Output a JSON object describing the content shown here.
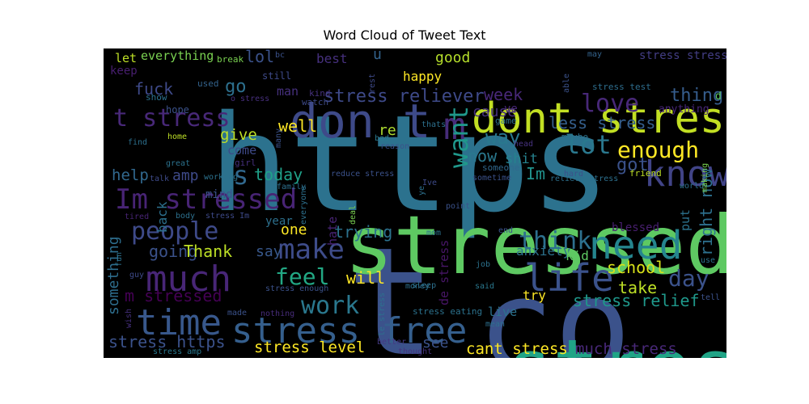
{
  "title": "Word Cloud of Tweet Text",
  "palette": "viridis",
  "words": [
    {
      "text": "https",
      "weight": 1.0,
      "color": "#2c728e"
    },
    {
      "text": "t",
      "weight": 0.98,
      "color": "#3b528b"
    },
    {
      "text": "co",
      "weight": 0.95,
      "color": "#3b528b"
    },
    {
      "text": "stressed",
      "weight": 0.85,
      "color": "#5ec962"
    },
    {
      "text": "stress",
      "weight": 0.78,
      "color": "#20a486"
    },
    {
      "text": "dont stress",
      "weight": 0.45,
      "color": "#c2df23"
    },
    {
      "text": "don t",
      "weight": 0.4,
      "color": "#3e4a89"
    },
    {
      "text": "t stress",
      "weight": 0.27,
      "color": "#482878"
    },
    {
      "text": "m",
      "weight": 0.35,
      "color": "#472c7a"
    },
    {
      "text": "know",
      "weight": 0.33,
      "color": "#414487"
    },
    {
      "text": "stress free",
      "weight": 0.36,
      "color": "#355f8d"
    },
    {
      "text": "time",
      "weight": 0.37,
      "color": "#38588c"
    },
    {
      "text": "need",
      "weight": 0.38,
      "color": "#25858e"
    },
    {
      "text": "life",
      "weight": 0.37,
      "color": "#3b528b"
    },
    {
      "text": "much",
      "weight": 0.36,
      "color": "#482677"
    },
    {
      "text": "Im stressed",
      "weight": 0.3,
      "color": "#482475"
    },
    {
      "text": "people",
      "weight": 0.28,
      "color": "#3e4a89"
    },
    {
      "text": "make",
      "weight": 0.3,
      "color": "#3e4c8a"
    },
    {
      "text": "love",
      "weight": 0.27,
      "color": "#482878"
    },
    {
      "text": "want",
      "weight": 0.27,
      "color": "#1f988b"
    },
    {
      "text": "lot",
      "weight": 0.27,
      "color": "#2a788e"
    },
    {
      "text": "enough",
      "weight": 0.27,
      "color": "#fde725"
    },
    {
      "text": "think",
      "weight": 0.28,
      "color": "#2d708e"
    },
    {
      "text": "work",
      "weight": 0.27,
      "color": "#2a788e"
    },
    {
      "text": "feel",
      "weight": 0.26,
      "color": "#22a884"
    },
    {
      "text": "day",
      "weight": 0.25,
      "color": "#3b528b"
    },
    {
      "text": "stress reliever",
      "weight": 0.2,
      "color": "#3e4a89"
    },
    {
      "text": "week",
      "weight": 0.16,
      "color": "#482878"
    },
    {
      "text": "thing",
      "weight": 0.18,
      "color": "#365d8d"
    },
    {
      "text": "less stress",
      "weight": 0.16,
      "color": "#355f8d"
    },
    {
      "text": "way",
      "weight": 0.2,
      "color": "#2a788e"
    },
    {
      "text": "s",
      "weight": 0.25,
      "color": "#31688e"
    },
    {
      "text": "fuck",
      "weight": 0.18,
      "color": "#3e4a89"
    },
    {
      "text": "go",
      "weight": 0.18,
      "color": "#2d708e"
    },
    {
      "text": "lol",
      "weight": 0.16,
      "color": "#3b528b"
    },
    {
      "text": "good",
      "weight": 0.16,
      "color": "#b5de2b"
    },
    {
      "text": "happy",
      "weight": 0.13,
      "color": "#fde725"
    },
    {
      "text": "best",
      "weight": 0.13,
      "color": "#46307e"
    },
    {
      "text": "u",
      "weight": 0.15,
      "color": "#33638d"
    },
    {
      "text": "everything",
      "weight": 0.13,
      "color": "#7ad151"
    },
    {
      "text": "let",
      "weight": 0.12,
      "color": "#bddf26"
    },
    {
      "text": "keep",
      "weight": 0.11,
      "color": "#481f70"
    },
    {
      "text": "stress stress",
      "weight": 0.12,
      "color": "#433e85"
    },
    {
      "text": "stress test",
      "weight": 0.09,
      "color": "#2e6e8e"
    },
    {
      "text": "anything",
      "weight": 0.1,
      "color": "#482777"
    },
    {
      "text": "well",
      "weight": 0.16,
      "color": "#fde725"
    },
    {
      "text": "give",
      "weight": 0.15,
      "color": "#bddf26"
    },
    {
      "text": "cause",
      "weight": 0.16,
      "color": "#46307e"
    },
    {
      "text": "re",
      "weight": 0.14,
      "color": "#addc30"
    },
    {
      "text": "now",
      "weight": 0.17,
      "color": "#2a788e"
    },
    {
      "text": "shit",
      "weight": 0.14,
      "color": "#26828e"
    },
    {
      "text": "got",
      "weight": 0.18,
      "color": "#3b528b"
    },
    {
      "text": "Im",
      "weight": 0.17,
      "color": "#21918c"
    },
    {
      "text": "help",
      "weight": 0.16,
      "color": "#31688e"
    },
    {
      "text": "amp",
      "weight": 0.16,
      "color": "#3e4a89"
    },
    {
      "text": "today",
      "weight": 0.17,
      "color": "#1fa088"
    },
    {
      "text": "come",
      "weight": 0.11,
      "color": "#3e4a89"
    },
    {
      "text": "right now",
      "weight": 0.18,
      "color": "#2d708e"
    },
    {
      "text": "one",
      "weight": 0.16,
      "color": "#fde725"
    },
    {
      "text": "hate",
      "weight": 0.11,
      "color": "#482475"
    },
    {
      "text": "trying",
      "weight": 0.17,
      "color": "#2c728e"
    },
    {
      "text": "going",
      "weight": 0.17,
      "color": "#3b528b"
    },
    {
      "text": "Thank",
      "weight": 0.17,
      "color": "#bddf26"
    },
    {
      "text": "say",
      "weight": 0.15,
      "color": "#38588c"
    },
    {
      "text": "will",
      "weight": 0.16,
      "color": "#fde725"
    },
    {
      "text": "anxiety",
      "weight": 0.12,
      "color": "#2c728e"
    },
    {
      "text": "kid",
      "weight": 0.12,
      "color": "#5ec962"
    },
    {
      "text": "school",
      "weight": 0.17,
      "color": "#d8e219"
    },
    {
      "text": "take",
      "weight": 0.17,
      "color": "#bddf26"
    },
    {
      "text": "m stressed",
      "weight": 0.17,
      "color": "#440154"
    },
    {
      "text": "something",
      "weight": 0.15,
      "color": "#2e6e8e"
    },
    {
      "text": "stress relief",
      "weight": 0.17,
      "color": "#1f988b"
    },
    {
      "text": "try",
      "weight": 0.12,
      "color": "#fde725"
    },
    {
      "text": "live",
      "weight": 0.12,
      "color": "#2c728e"
    },
    {
      "text": "de stress",
      "weight": 0.13,
      "color": "#481668"
    },
    {
      "text": "stress https",
      "weight": 0.17,
      "color": "#3b528b"
    },
    {
      "text": "stress level",
      "weight": 0.17,
      "color": "#fde725"
    },
    {
      "text": "see",
      "weight": 0.15,
      "color": "#3b528b"
    },
    {
      "text": "cant stress",
      "weight": 0.17,
      "color": "#fde725"
    },
    {
      "text": "much stress",
      "weight": 0.17,
      "color": "#482878"
    },
    {
      "text": "year",
      "weight": 0.11,
      "color": "#2d708e"
    },
    {
      "text": "blessed",
      "weight": 0.11,
      "color": "#481f70"
    },
    {
      "text": "put",
      "weight": 0.12,
      "color": "#2c728e"
    },
    {
      "text": "back",
      "weight": 0.12,
      "color": "#2d708e"
    },
    {
      "text": "mind",
      "weight": 0.11,
      "color": "#3b528b"
    },
    {
      "text": "stress eating",
      "weight": 0.08,
      "color": "#2c728e"
    },
    {
      "text": "stress enough",
      "weight": 0.08,
      "color": "#3b528b"
    },
    {
      "text": "reduce stress",
      "weight": 0.08,
      "color": "#3b528b"
    },
    {
      "text": "relieve stress",
      "weight": 0.08,
      "color": "#2d708e"
    },
    {
      "text": "stress amp",
      "weight": 0.08,
      "color": "#2a788e"
    },
    {
      "text": "thought",
      "weight": 0.08,
      "color": "#46337e"
    },
    {
      "text": "better",
      "weight": 0.08,
      "color": "#443983"
    },
    {
      "text": "sometime",
      "weight": 0.07,
      "color": "#3b528b"
    },
    {
      "text": "someone",
      "weight": 0.09,
      "color": "#31688e"
    },
    {
      "text": "friend",
      "weight": 0.08,
      "color": "#bddf26"
    },
    {
      "text": "world",
      "weight": 0.08,
      "color": "#2d708e"
    },
    {
      "text": "making",
      "weight": 0.07,
      "color": "#7ad151"
    },
    {
      "text": "man",
      "weight": 0.09,
      "color": "#46307e"
    },
    {
      "text": "watch",
      "weight": 0.08,
      "color": "#3e4a89"
    },
    {
      "text": "kind",
      "weight": 0.07,
      "color": "#46327e"
    },
    {
      "text": "still",
      "weight": 0.08,
      "color": "#3e4a89"
    },
    {
      "text": "used",
      "weight": 0.07,
      "color": "#33638d"
    },
    {
      "text": "show",
      "weight": 0.07,
      "color": "#2c728e"
    },
    {
      "text": "break",
      "weight": 0.07,
      "color": "#7ad151"
    },
    {
      "text": "bc",
      "weight": 0.06,
      "color": "#3b528b"
    },
    {
      "text": "o stress",
      "weight": 0.07,
      "color": "#472f7d"
    },
    {
      "text": "rest",
      "weight": 0.07,
      "color": "#3e4a89"
    },
    {
      "text": "able",
      "weight": 0.07,
      "color": "#3b528b"
    },
    {
      "text": "may",
      "weight": 0.07,
      "color": "#33638d"
    },
    {
      "text": "d",
      "weight": 0.07,
      "color": "#5ec962"
    },
    {
      "text": "ve",
      "weight": 0.09,
      "color": "#482677"
    },
    {
      "text": "game",
      "weight": 0.08,
      "color": "#2d708e"
    },
    {
      "text": "head",
      "weight": 0.07,
      "color": "#46327e"
    },
    {
      "text": "maybe",
      "weight": 0.07,
      "color": "#2c728e"
    },
    {
      "text": "thats",
      "weight": 0.07,
      "color": "#2d708e"
    },
    {
      "text": "bad",
      "weight": 0.07,
      "color": "#2a788e"
    },
    {
      "text": "reason",
      "weight": 0.07,
      "color": "#3b528b"
    },
    {
      "text": "hope",
      "weight": 0.08,
      "color": "#3b528b"
    },
    {
      "text": "home",
      "weight": 0.07,
      "color": "#bddf26"
    },
    {
      "text": "find",
      "weight": 0.07,
      "color": "#2d708e"
    },
    {
      "text": "great",
      "weight": 0.07,
      "color": "#2c728e"
    },
    {
      "text": "girl",
      "weight": 0.07,
      "color": "#46307e"
    },
    {
      "text": "talk",
      "weight": 0.07,
      "color": "#3e4a89"
    },
    {
      "text": "working",
      "weight": 0.07,
      "color": "#2c728e"
    },
    {
      "text": "family",
      "weight": 0.07,
      "color": "#2d708e"
    },
    {
      "text": "many",
      "weight": 0.07,
      "color": "#3b528b"
    },
    {
      "text": "everyone",
      "weight": 0.07,
      "color": "#2d708e"
    },
    {
      "text": "deal",
      "weight": 0.07,
      "color": "#7ad151"
    },
    {
      "text": "Ive",
      "weight": 0.07,
      "color": "#3e4a89"
    },
    {
      "text": "ye",
      "weight": 0.06,
      "color": "#2d708e"
    },
    {
      "text": "hard",
      "weight": 0.07,
      "color": "#3b528b"
    },
    {
      "text": "point",
      "weight": 0.07,
      "color": "#3b528b"
    },
    {
      "text": "mom",
      "weight": 0.07,
      "color": "#2c728e"
    },
    {
      "text": "end",
      "weight": 0.07,
      "color": "#3b528b"
    },
    {
      "text": "body",
      "weight": 0.07,
      "color": "#2d708e"
    },
    {
      "text": "tired",
      "weight": 0.07,
      "color": "#482475"
    },
    {
      "text": "stress Im",
      "weight": 0.07,
      "color": "#3e4a89"
    },
    {
      "text": "money",
      "weight": 0.07,
      "color": "#2d708e"
    },
    {
      "text": "job",
      "weight": 0.07,
      "color": "#2c728e"
    },
    {
      "text": "sleep",
      "weight": 0.07,
      "color": "#2d708e"
    },
    {
      "text": "said",
      "weight": 0.07,
      "color": "#2a788e"
    },
    {
      "text": "mean",
      "weight": 0.07,
      "color": "#2d708e"
    },
    {
      "text": "fun",
      "weight": 0.07,
      "color": "#2c728e"
    },
    {
      "text": "guy",
      "weight": 0.07,
      "color": "#3e4a89"
    },
    {
      "text": "made",
      "weight": 0.07,
      "color": "#3b528b"
    },
    {
      "text": "nothing",
      "weight": 0.07,
      "color": "#472c7a"
    },
    {
      "text": "wish",
      "weight": 0.07,
      "color": "#46307e"
    },
    {
      "text": "le stress",
      "weight": 0.07,
      "color": "#2d708e"
    },
    {
      "text": "use",
      "weight": 0.07,
      "color": "#2c728e"
    },
    {
      "text": "tell",
      "weight": 0.07,
      "color": "#3b528b"
    }
  ]
}
